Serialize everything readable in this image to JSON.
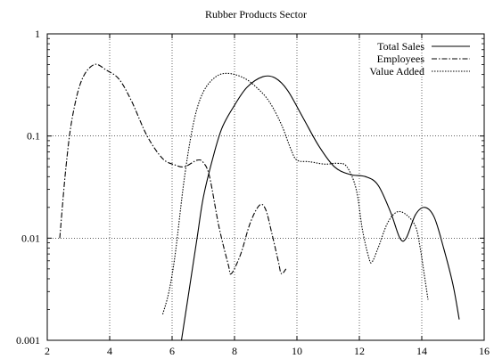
{
  "chart_data": {
    "type": "line",
    "title": "Rubber Products Sector",
    "xlabel": "",
    "ylabel": "",
    "xlim": [
      2,
      16
    ],
    "ylim": [
      0.001,
      1
    ],
    "y_scale": "log",
    "grid": true,
    "legend_position": "top-right",
    "xticks": [
      {
        "v": 2,
        "label": "2"
      },
      {
        "v": 4,
        "label": "4"
      },
      {
        "v": 6,
        "label": "6"
      },
      {
        "v": 8,
        "label": "8"
      },
      {
        "v": 10,
        "label": "10"
      },
      {
        "v": 12,
        "label": "12"
      },
      {
        "v": 14,
        "label": "14"
      },
      {
        "v": 16,
        "label": "16"
      }
    ],
    "yticks": [
      {
        "v": 0.001,
        "label": "0.001"
      },
      {
        "v": 0.01,
        "label": "0.01"
      },
      {
        "v": 0.1,
        "label": "0.1"
      },
      {
        "v": 1,
        "label": "1"
      }
    ],
    "series": [
      {
        "name": "Total Sales",
        "style": "solid",
        "points": [
          [
            6.3,
            0.001
          ],
          [
            6.5,
            0.0025
          ],
          [
            6.8,
            0.01
          ],
          [
            7.0,
            0.025
          ],
          [
            7.3,
            0.06
          ],
          [
            7.6,
            0.12
          ],
          [
            8.0,
            0.2
          ],
          [
            8.4,
            0.3
          ],
          [
            8.9,
            0.38
          ],
          [
            9.3,
            0.37
          ],
          [
            9.7,
            0.28
          ],
          [
            10.2,
            0.15
          ],
          [
            10.7,
            0.08
          ],
          [
            11.2,
            0.05
          ],
          [
            11.7,
            0.042
          ],
          [
            12.2,
            0.04
          ],
          [
            12.6,
            0.033
          ],
          [
            13.0,
            0.018
          ],
          [
            13.3,
            0.01
          ],
          [
            13.5,
            0.01
          ],
          [
            13.8,
            0.017
          ],
          [
            14.1,
            0.02
          ],
          [
            14.4,
            0.016
          ],
          [
            14.7,
            0.008
          ],
          [
            15.0,
            0.0035
          ],
          [
            15.2,
            0.0016
          ]
        ]
      },
      {
        "name": "Employees",
        "style": "dashdot",
        "segments": [
          [
            [
              2.4,
              0.01
            ],
            [
              2.6,
              0.05
            ],
            [
              2.8,
              0.15
            ],
            [
              3.1,
              0.35
            ],
            [
              3.5,
              0.5
            ],
            [
              3.9,
              0.44
            ],
            [
              4.3,
              0.36
            ],
            [
              4.7,
              0.22
            ],
            [
              5.2,
              0.1
            ],
            [
              5.7,
              0.06
            ],
            [
              6.1,
              0.052
            ],
            [
              6.4,
              0.05
            ],
            [
              6.8,
              0.058
            ],
            [
              7.0,
              0.055
            ],
            [
              7.2,
              0.04
            ],
            [
              7.5,
              0.013
            ],
            [
              7.8,
              0.0055
            ],
            [
              7.9,
              0.0045
            ],
            [
              8.2,
              0.007
            ],
            [
              8.5,
              0.014
            ],
            [
              8.8,
              0.021
            ],
            [
              9.0,
              0.019
            ],
            [
              9.2,
              0.011
            ],
            [
              9.4,
              0.006
            ],
            [
              9.5,
              0.0045
            ],
            [
              9.65,
              0.005
            ]
          ]
        ]
      },
      {
        "name": "Value Added",
        "style": "dotted",
        "segments": [
          [
            [
              5.7,
              0.0018
            ],
            [
              5.9,
              0.003
            ],
            [
              6.1,
              0.007
            ],
            [
              6.4,
              0.04
            ],
            [
              6.7,
              0.14
            ],
            [
              7.0,
              0.27
            ],
            [
              7.4,
              0.38
            ],
            [
              7.8,
              0.41
            ],
            [
              8.3,
              0.37
            ],
            [
              8.7,
              0.3
            ],
            [
              9.1,
              0.22
            ],
            [
              9.5,
              0.13
            ],
            [
              9.8,
              0.075
            ],
            [
              10.0,
              0.058
            ],
            [
              10.4,
              0.056
            ],
            [
              10.9,
              0.053
            ],
            [
              11.3,
              0.054
            ],
            [
              11.6,
              0.05
            ],
            [
              11.9,
              0.03
            ],
            [
              12.1,
              0.012
            ],
            [
              12.3,
              0.0065
            ],
            [
              12.4,
              0.0058
            ],
            [
              12.6,
              0.008
            ],
            [
              12.9,
              0.014
            ],
            [
              13.2,
              0.018
            ],
            [
              13.5,
              0.017
            ],
            [
              13.8,
              0.013
            ],
            [
              13.95,
              0.008
            ],
            [
              14.1,
              0.004
            ],
            [
              14.2,
              0.0025
            ]
          ]
        ]
      }
    ]
  }
}
